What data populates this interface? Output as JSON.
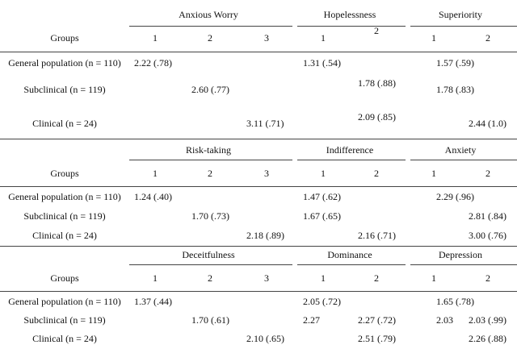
{
  "table": {
    "blocks": [
      {
        "groups_label": "Groups",
        "headers": [
          {
            "name": "Anxious Worry",
            "subsets": [
              "1",
              "2",
              "3"
            ]
          },
          {
            "name": "Hopelessness",
            "subsets": [
              "1",
              "2"
            ]
          },
          {
            "name": "Superiority",
            "subsets": [
              "1",
              "2"
            ]
          }
        ],
        "rows": [
          {
            "label": "General population (n = 110)",
            "cells": [
              "2.22 (.78)",
              null,
              null,
              "1.31 (.54)",
              null,
              "1.57 (.59)",
              null
            ]
          },
          {
            "label": "Subclinical (n = 119)",
            "cells": [
              null,
              "2.60 (.77)",
              null,
              null,
              "1.78 (.88)",
              "1.78 (.83)",
              null
            ]
          },
          {
            "label": "Clinical (n = 24)",
            "cells": [
              null,
              null,
              "3.11 (.71)",
              null,
              "2.09 (.85)",
              null,
              "2.44 (1.0)"
            ]
          }
        ]
      },
      {
        "groups_label": "Groups",
        "headers": [
          {
            "name": "Risk-taking",
            "subsets": [
              "1",
              "2",
              "3"
            ]
          },
          {
            "name": "Indifference",
            "subsets": [
              "1",
              "2"
            ]
          },
          {
            "name": "Anxiety",
            "subsets": [
              "1",
              "2"
            ]
          }
        ],
        "rows": [
          {
            "label": "General population (n = 110)",
            "cells": [
              "1.24 (.40)",
              null,
              null,
              "1.47 (.62)",
              null,
              "2.29 (.96)",
              null
            ]
          },
          {
            "label": "Subclinical (n = 119)",
            "cells": [
              null,
              "1.70 (.73)",
              null,
              "1.67 (.65)",
              null,
              null,
              "2.81 (.84)"
            ]
          },
          {
            "label": "Clinical (n = 24)",
            "cells": [
              null,
              null,
              "2.18 (.89)",
              null,
              "2.16 (.71)",
              null,
              "3.00 (.76)"
            ]
          }
        ]
      },
      {
        "groups_label": "Groups",
        "headers": [
          {
            "name": "Deceitfulness",
            "subsets": [
              "1",
              "2",
              "3"
            ]
          },
          {
            "name": "Dominance",
            "subsets": [
              "1",
              "2"
            ]
          },
          {
            "name": "Depression",
            "subsets": [
              "1",
              "2"
            ]
          }
        ],
        "rows": [
          {
            "label": "General population (n = 110)",
            "cells": [
              "1.37 (.44)",
              null,
              null,
              "2.05 (.72)",
              null,
              "1.65 (.78)",
              null
            ]
          },
          {
            "label": "Subclinical (n = 119)",
            "cells": [
              null,
              "1.70 (.61)",
              null,
              "2.27",
              "2.27 (.72)",
              "2.03",
              "2.03 (.99)"
            ]
          },
          {
            "label": "Clinical (n = 24)",
            "cells": [
              null,
              null,
              "2.10 (.65)",
              null,
              "2.51 (.79)",
              null,
              "2.26 (.88)"
            ]
          }
        ]
      }
    ]
  }
}
